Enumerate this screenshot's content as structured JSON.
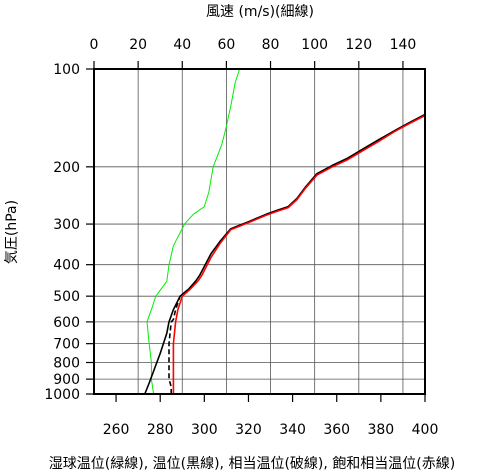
{
  "chart_data": {
    "type": "line",
    "title": "",
    "top_axis": {
      "label": "風速 (m/s)(細線)",
      "range": [
        0,
        150
      ],
      "ticks": [
        "0",
        "20",
        "40",
        "60",
        "80",
        "100",
        "120",
        "140"
      ],
      "tick_values": [
        0,
        20,
        40,
        60,
        80,
        100,
        120,
        140
      ]
    },
    "bottom_axis": {
      "label": "湿球温位(緑線), 温位(黒線), 相当温位(破線), 飽和相当温位(赤線)",
      "range": [
        250,
        400
      ],
      "ticks": [
        "260",
        "280",
        "300",
        "320",
        "340",
        "360",
        "380",
        "400"
      ],
      "tick_values": [
        260,
        280,
        300,
        320,
        340,
        360,
        380,
        400
      ]
    },
    "y_axis": {
      "label": "気圧(hPa)",
      "scale": "log",
      "inverted": true,
      "range": [
        100,
        1050
      ],
      "ticks": [
        "100",
        "200",
        "300",
        "400",
        "500",
        "600",
        "700",
        "800",
        "900",
        "1000"
      ],
      "tick_values": [
        100,
        200,
        300,
        400,
        500,
        600,
        700,
        800,
        900,
        1000
      ]
    },
    "grid": true,
    "series": [
      {
        "axis": "top",
        "color": "#00ee00",
        "style": "solid",
        "points": [
          [
            27,
            1000
          ],
          [
            26,
            900
          ],
          [
            26,
            800
          ],
          [
            25,
            700
          ],
          [
            24,
            600
          ],
          [
            26,
            550
          ],
          [
            28,
            500
          ],
          [
            33,
            450
          ],
          [
            34,
            400
          ],
          [
            36,
            350
          ],
          [
            41,
            300
          ],
          [
            45,
            280
          ],
          [
            50,
            265
          ],
          [
            52,
            240
          ],
          [
            54,
            200
          ],
          [
            58,
            170
          ],
          [
            60,
            150
          ],
          [
            62,
            130
          ],
          [
            64,
            110
          ],
          [
            66,
            100
          ]
        ]
      },
      {
        "axis": "bottom",
        "color": "#000000",
        "style": "solid",
        "points": [
          [
            273,
            1000
          ],
          [
            275,
            925
          ],
          [
            277,
            850
          ],
          [
            280,
            750
          ],
          [
            283,
            650
          ],
          [
            284,
            600
          ],
          [
            286,
            550
          ],
          [
            289,
            500
          ],
          [
            293,
            475
          ],
          [
            296,
            450
          ],
          [
            298,
            430
          ],
          [
            303,
            370
          ],
          [
            307,
            340
          ],
          [
            312,
            310
          ],
          [
            320,
            295
          ],
          [
            328,
            280
          ],
          [
            333,
            272
          ],
          [
            338,
            265
          ],
          [
            342,
            250
          ],
          [
            346,
            230
          ],
          [
            351,
            210
          ],
          [
            358,
            198
          ],
          [
            365,
            188
          ],
          [
            372,
            176
          ],
          [
            379,
            165
          ],
          [
            386,
            155
          ],
          [
            393,
            146
          ],
          [
            400,
            138
          ]
        ]
      },
      {
        "axis": "bottom",
        "color": "#000000",
        "style": "dashed",
        "points": [
          [
            285,
            1000
          ],
          [
            285,
            950
          ],
          [
            284,
            900
          ],
          [
            284,
            800
          ],
          [
            284,
            700
          ],
          [
            285,
            600
          ],
          [
            286,
            590
          ],
          [
            287,
            550
          ],
          [
            289,
            500
          ],
          [
            293,
            475
          ],
          [
            296,
            450
          ]
        ]
      },
      {
        "axis": "bottom",
        "color": "#ff0000",
        "style": "solid",
        "points": [
          [
            286,
            1000
          ],
          [
            286,
            950
          ],
          [
            286,
            900
          ],
          [
            286,
            800
          ],
          [
            286,
            700
          ],
          [
            287,
            600
          ],
          [
            288,
            550
          ],
          [
            290,
            500
          ],
          [
            293,
            480
          ],
          [
            297,
            450
          ],
          [
            299,
            430
          ],
          [
            303,
            380
          ],
          [
            307,
            345
          ],
          [
            312,
            312
          ],
          [
            320,
            297
          ],
          [
            328,
            282
          ],
          [
            333,
            274
          ],
          [
            338,
            267
          ],
          [
            342,
            252
          ],
          [
            346,
            232
          ],
          [
            351,
            212
          ],
          [
            358,
            200
          ],
          [
            365,
            190
          ],
          [
            372,
            178
          ],
          [
            379,
            167
          ],
          [
            386,
            156
          ],
          [
            393,
            147
          ],
          [
            400,
            139
          ]
        ]
      }
    ]
  }
}
